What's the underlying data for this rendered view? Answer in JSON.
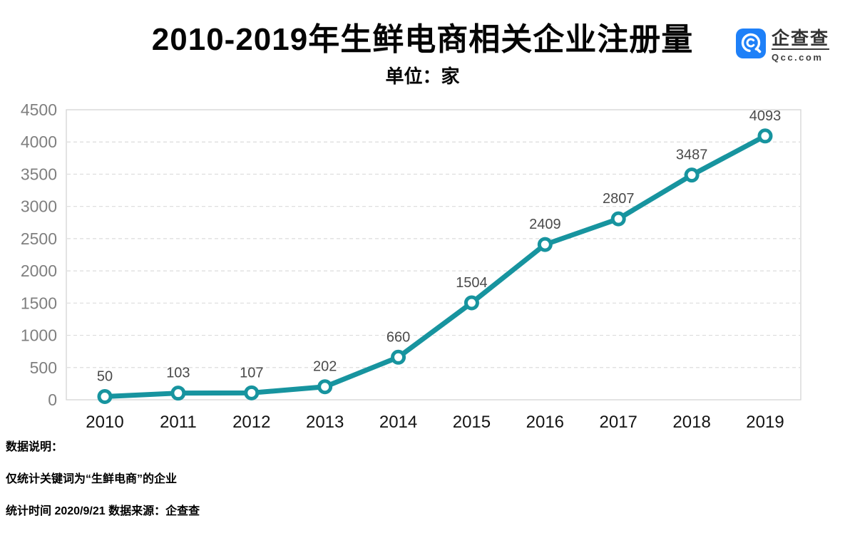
{
  "header": {
    "title": "2010-2019年生鲜电商相关企业注册量",
    "subtitle": "单位：家"
  },
  "logo": {
    "name": "企查查",
    "domain": "Qcc.com",
    "brand_color": "#1E80F8"
  },
  "chart_data": {
    "type": "line",
    "title": "2010-2019年生鲜电商相关企业注册量",
    "unit_label": "单位：家",
    "categories": [
      "2010",
      "2011",
      "2012",
      "2013",
      "2014",
      "2015",
      "2016",
      "2017",
      "2018",
      "2019"
    ],
    "values": [
      50,
      103,
      107,
      202,
      660,
      1504,
      2409,
      2807,
      3487,
      4093
    ],
    "ylim": [
      0,
      4500
    ],
    "yticks": [
      0,
      500,
      1000,
      1500,
      2000,
      2500,
      3000,
      3500,
      4000,
      4500
    ],
    "xlabel": "",
    "ylabel": "",
    "grid": "horizontal-dashed",
    "legend": "none",
    "line_color": "#17949F",
    "marker": "open-circle",
    "label_color": "#4a4a4a",
    "ytick_color": "#7f7f7f",
    "xtick_color": "#141414"
  },
  "notes": {
    "heading": "数据说明：",
    "line2": "仅统计关键词为“生鲜电商”的企业",
    "line3": "统计时间 2020/9/21   数据来源：企查查"
  }
}
